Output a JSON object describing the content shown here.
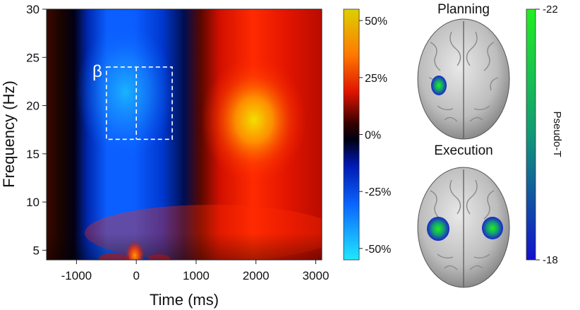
{
  "chart_data": {
    "type": "heatmap",
    "xlabel": "Time (ms)",
    "ylabel": "Frequency (Hz)",
    "xlim": [
      -1500,
      3100
    ],
    "ylim": [
      4,
      30
    ],
    "x_ticks": [
      {
        "value": -1000,
        "label": "-1000"
      },
      {
        "value": 0,
        "label": "0"
      },
      {
        "value": 1000,
        "label": "1000"
      },
      {
        "value": 2000,
        "label": "2000"
      },
      {
        "value": 3000,
        "label": "3000"
      }
    ],
    "y_ticks": [
      {
        "value": 5,
        "label": "5"
      },
      {
        "value": 10,
        "label": "10"
      },
      {
        "value": 15,
        "label": "15"
      },
      {
        "value": 20,
        "label": "20"
      },
      {
        "value": 25,
        "label": "25"
      },
      {
        "value": 30,
        "label": "30"
      }
    ],
    "colorbar": {
      "range": [
        -55,
        55
      ],
      "ticks": [
        {
          "value": 50,
          "label": "50%"
        },
        {
          "value": 25,
          "label": "25%"
        },
        {
          "value": 0,
          "label": "0%"
        },
        {
          "value": -25,
          "label": "-25%"
        },
        {
          "value": -50,
          "label": "-50%"
        }
      ]
    },
    "regions": [
      {
        "kind": "desynchronization",
        "x_range": [
          -800,
          1000
        ],
        "y_range": [
          5,
          30
        ],
        "peak_percent": -45
      },
      {
        "kind": "rebound",
        "x_range": [
          1000,
          3100
        ],
        "y_range": [
          5,
          30
        ],
        "peak_percent": 50,
        "peak_at": [
          2000,
          19
        ]
      },
      {
        "kind": "low-frequency burst",
        "x_range": [
          -300,
          300
        ],
        "y_range": [
          4,
          7
        ],
        "peak_percent": 30
      }
    ],
    "annotation": {
      "label": "β",
      "x_range": [
        -500,
        600
      ],
      "y_range": [
        16.5,
        24
      ],
      "divider_x": 0
    }
  },
  "brain_panels": [
    {
      "title": "Planning",
      "icon": "brain-top-view-icon",
      "activations": [
        "left"
      ]
    },
    {
      "title": "Execution",
      "icon": "brain-top-view-icon",
      "activations": [
        "left",
        "right"
      ]
    }
  ],
  "pseudo_colorbar": {
    "label": "Pseudo-T",
    "top_label": "-22",
    "bottom_label": "-18",
    "colors": [
      "#22ee22",
      "#119977",
      "#1111cc"
    ]
  }
}
